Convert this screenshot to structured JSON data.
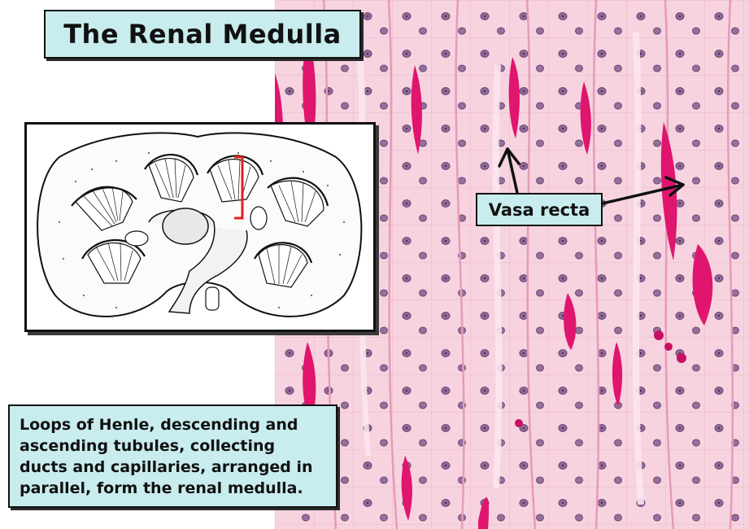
{
  "title": "The Renal Medulla",
  "caption": "Loops of Henle, descending and ascending tubules, collecting ducts and capillaries, arranged in parallel, form the renal medulla.",
  "label": "Vasa recta",
  "colors": {
    "label_box_fill": "#c9ecee",
    "tissue_background": "#f4c2d4",
    "capillary_red": "#e0156e",
    "nucleus": "#8a5a8c",
    "bracket_red": "#e0201c"
  }
}
